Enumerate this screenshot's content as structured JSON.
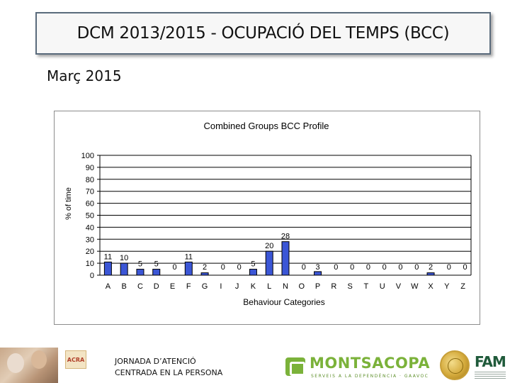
{
  "header": {
    "title": "DCM  2013/2015 - OCUPACIÓ DEL TEMPS (BCC)",
    "subtitle": "Març 2015"
  },
  "chart_data": {
    "type": "bar",
    "title": "Combined Groups BCC Profile",
    "xlabel": "Behaviour Categories",
    "ylabel": "% of time",
    "ylim": [
      0,
      100
    ],
    "yticks": [
      0,
      10,
      20,
      30,
      40,
      50,
      60,
      70,
      80,
      90,
      100
    ],
    "grid": true,
    "legend": "none",
    "categories": [
      "A",
      "B",
      "C",
      "D",
      "E",
      "F",
      "G",
      "I",
      "J",
      "K",
      "L",
      "N",
      "O",
      "P",
      "R",
      "S",
      "T",
      "U",
      "V",
      "W",
      "X",
      "Y",
      "Z"
    ],
    "values": [
      11,
      10,
      5,
      5,
      0,
      11,
      2,
      0,
      0,
      5,
      20,
      28,
      0,
      3,
      0,
      0,
      0,
      0,
      0,
      0,
      2,
      0,
      0
    ],
    "value_labels": [
      "11",
      "10",
      "5",
      "5",
      "0",
      "11",
      "2",
      "0",
      "0",
      "5",
      "20",
      "28",
      "0",
      "3",
      "0",
      "0",
      "0",
      "0",
      "0",
      "0",
      "2",
      "0",
      "0"
    ],
    "colors": {
      "bar": "#3b56d6",
      "bar_edge": "#000000",
      "grid": "#000000"
    }
  },
  "footer": {
    "event_line1": "JORNADA D’ATENCIÓ",
    "event_line2": "CENTRADA EN LA PERSONA",
    "logos": {
      "acra": "ACRA",
      "montsacopa_name": "MONTSACOPA",
      "montsacopa_tagline": "SERVEIS A LA DEPENDÈNCIA · GAAVOC",
      "fam": "FAM"
    }
  }
}
